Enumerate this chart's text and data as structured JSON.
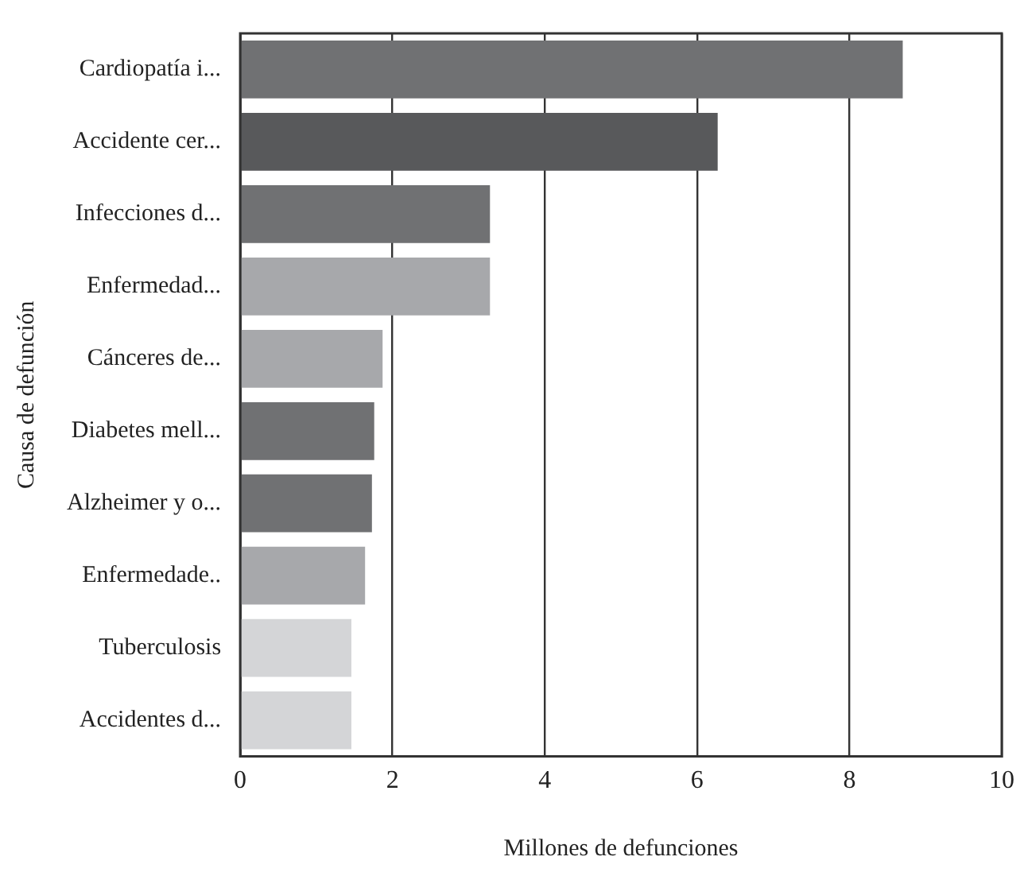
{
  "chart_data": {
    "type": "bar",
    "orientation": "horizontal",
    "xlabel": "Millones de defunciones",
    "ylabel": "Causa de defunción",
    "categories": [
      "Cardiopatía i...",
      "Accidente cer...",
      "Infecciones d...",
      "Enfermedad...",
      "Cánceres de...",
      "Diabetes mell...",
      "Alzheimer y o...",
      "Enfermedade..",
      "Tuberculosis",
      "Accidentes d..."
    ],
    "values": [
      8.7,
      6.27,
      3.28,
      3.28,
      1.87,
      1.76,
      1.73,
      1.64,
      1.46,
      1.46
    ],
    "colors": [
      "#707173",
      "#58595b",
      "#707173",
      "#a7a8ab",
      "#a7a8ab",
      "#707173",
      "#707173",
      "#a7a8ab",
      "#d4d5d7",
      "#d4d5d7"
    ],
    "xlim": [
      0,
      10
    ],
    "xticks": [
      0,
      2,
      4,
      6,
      8,
      10
    ],
    "grid": "x",
    "legend": false
  }
}
